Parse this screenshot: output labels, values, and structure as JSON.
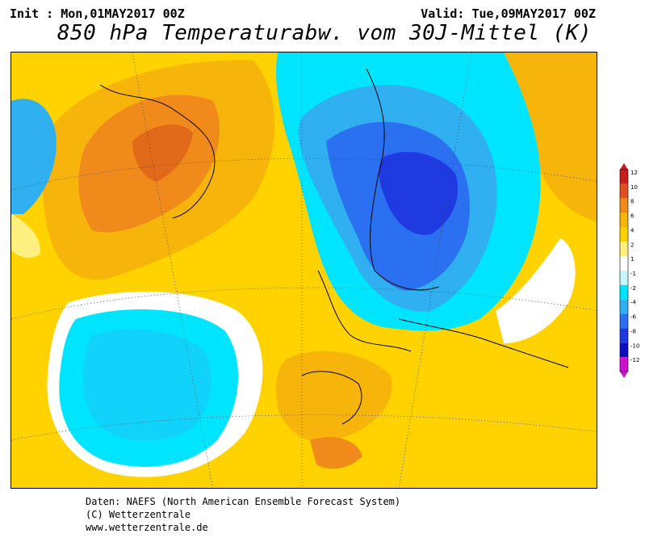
{
  "header": {
    "init": "Init : Mon,01MAY2017 00Z",
    "valid": "Valid: Tue,09MAY2017 00Z",
    "title": "850 hPa Temperaturabw. vom 30J-Mittel (K)"
  },
  "legend": {
    "ticks": [
      "12",
      "10",
      "8",
      "6",
      "4",
      "2",
      "1",
      "-1",
      "-2",
      "-4",
      "-6",
      "-8",
      "-10",
      "-12"
    ],
    "colors": [
      "#c81e1e",
      "#e0501e",
      "#f08a1a",
      "#f7b40a",
      "#ffd200",
      "#fff080",
      "#ffffff",
      "#c8f8ff",
      "#00e5ff",
      "#30b0f0",
      "#2a70f0",
      "#1e3ae0",
      "#0a10c0",
      "#d010d0"
    ]
  },
  "map": {
    "field": "850 hPa temperature anomaly",
    "projection": "polar stereographic",
    "region": "North Atlantic / Europe"
  },
  "footer": {
    "line1": "Daten: NAEFS (North American Ensemble Forecast System)",
    "line2": "(C) Wetterzentrale",
    "line3": "www.wetterzentrale.de"
  }
}
